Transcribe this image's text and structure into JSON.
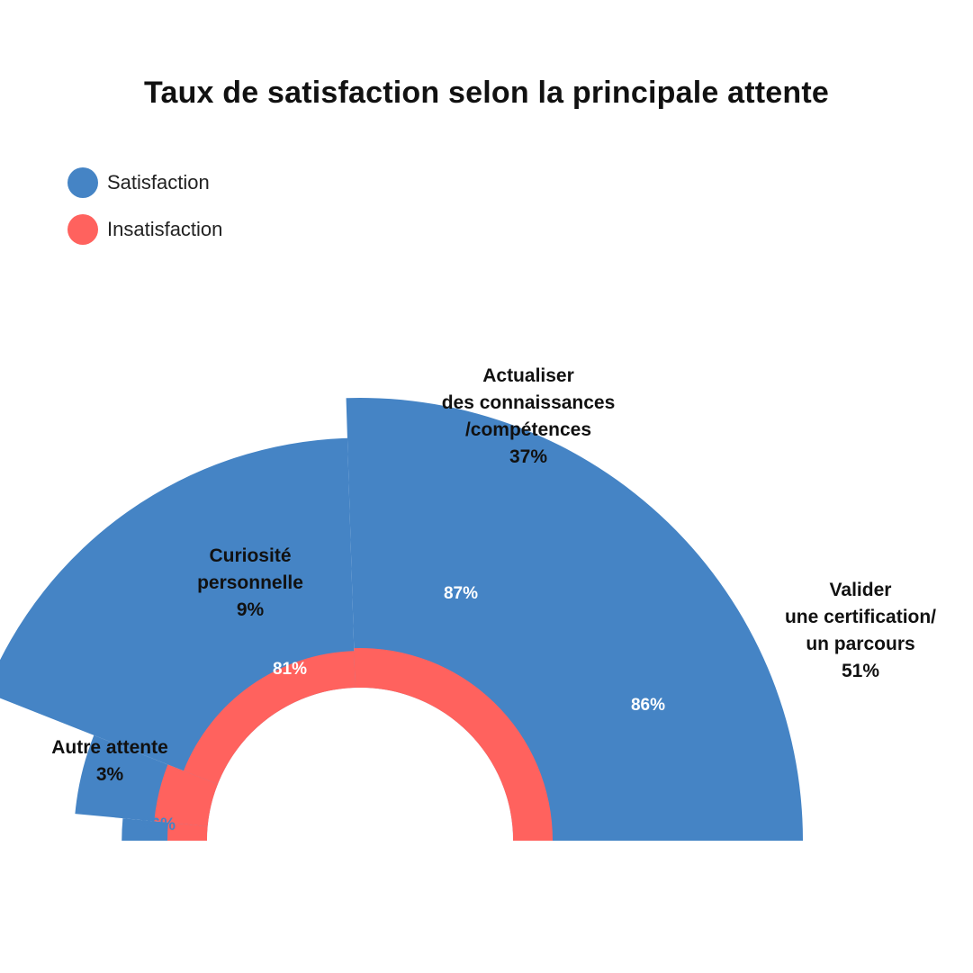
{
  "colors": {
    "satisfaction": "#4584C5",
    "insatisfaction": "#FF625E"
  },
  "legend": [
    {
      "label": "Satisfaction",
      "color": "#4584C5"
    },
    {
      "label": "Insatisfaction",
      "color": "#FF625E"
    }
  ],
  "chart_data": {
    "type": "polar-area",
    "title": "Taux de satisfaction selon la principale attente",
    "legend_placement": "top-left",
    "segments": [
      {
        "category_lines": [
          "Autre attente"
        ],
        "share": 3,
        "share_label": "3%",
        "satisfaction": 86,
        "satisfaction_label": "86%"
      },
      {
        "category_lines": [
          "Curiosité",
          "personnelle"
        ],
        "share": 9,
        "share_label": "9%",
        "satisfaction": 81,
        "satisfaction_label": "81%"
      },
      {
        "category_lines": [
          "Actualiser",
          "des connaissances",
          "/compétences"
        ],
        "share": 37,
        "share_label": "37%",
        "satisfaction": 87,
        "satisfaction_label": "87%"
      },
      {
        "category_lines": [
          "Valider",
          "une certification/",
          "un parcours"
        ],
        "share": 51,
        "share_label": "51%",
        "satisfaction": 86,
        "satisfaction_label": "86%"
      }
    ]
  }
}
